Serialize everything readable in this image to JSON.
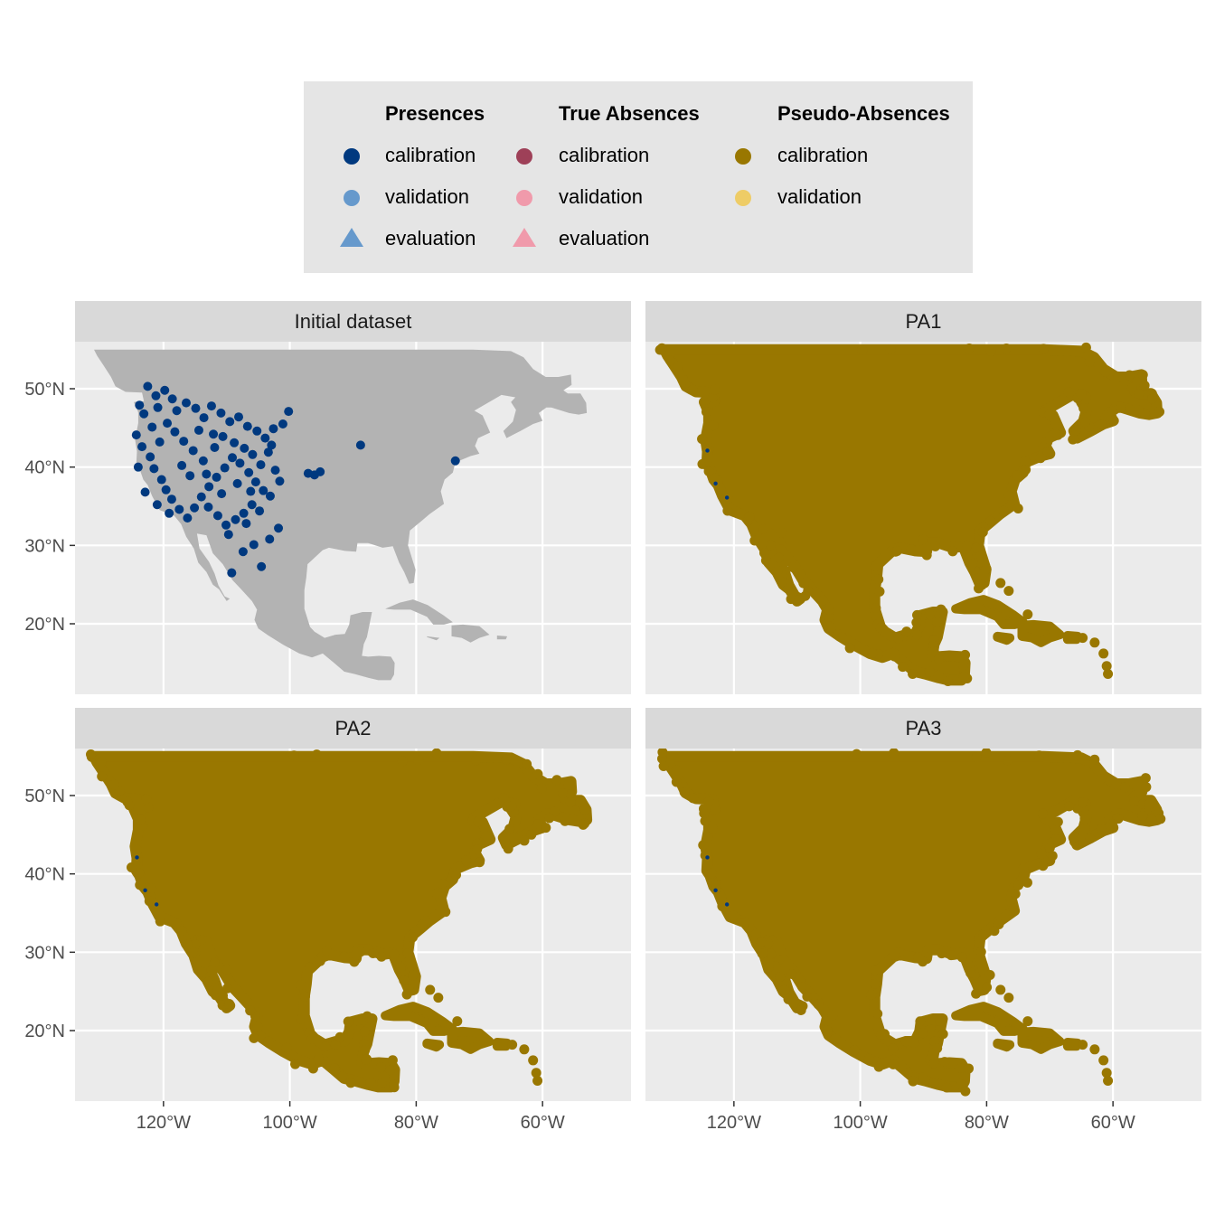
{
  "colors": {
    "presence_calibration": "#00397f",
    "presence_validation": "#6699cc",
    "presence_evaluation": "#6699cc",
    "absence_calibration": "#9e4058",
    "absence_validation": "#f09aab",
    "absence_evaluation": "#f09aab",
    "pseudo_calibration": "#997700",
    "pseudo_validation": "#eecc66",
    "land": "#b3b3b3",
    "panel_background": "#ebebeb",
    "strip_background": "#d9d9d9",
    "legend_background": "#e5e5e5",
    "grid": "#ffffff"
  },
  "legend": {
    "groups": [
      {
        "title": "Presences",
        "items": [
          {
            "label": "calibration",
            "shape": "circle",
            "color": "#00397f"
          },
          {
            "label": "validation",
            "shape": "circle",
            "color": "#6699cc"
          },
          {
            "label": "evaluation",
            "shape": "triangle",
            "color": "#6699cc"
          }
        ]
      },
      {
        "title": "True Absences",
        "items": [
          {
            "label": "calibration",
            "shape": "circle",
            "color": "#9e4058"
          },
          {
            "label": "validation",
            "shape": "circle",
            "color": "#f09aab"
          },
          {
            "label": "evaluation",
            "shape": "triangle",
            "color": "#f09aab"
          }
        ]
      },
      {
        "title": "Pseudo-Absences",
        "items": [
          {
            "label": "calibration",
            "shape": "circle",
            "color": "#997700"
          },
          {
            "label": "validation",
            "shape": "circle",
            "color": "#eecc66"
          }
        ]
      }
    ]
  },
  "chart_data": {
    "type": "scatter",
    "xlim": [
      -134,
      -46
    ],
    "ylim": [
      11,
      56
    ],
    "x_ticks": [
      -120,
      -100,
      -80,
      -60
    ],
    "x_tick_labels": [
      "120°W",
      "100°W",
      "80°W",
      "60°W"
    ],
    "y_ticks": [
      20,
      30,
      40,
      50
    ],
    "y_tick_labels": [
      "20°N",
      "30°N",
      "40°N",
      "50°N"
    ],
    "grid": true,
    "legend_position": "top",
    "panels": [
      {
        "title": "Initial dataset",
        "series": [
          {
            "name": "Presences calibration",
            "color": "#00397f",
            "points": [
              [
                -122.5,
                50.3
              ],
              [
                -121.2,
                49.1
              ],
              [
                -119.8,
                49.8
              ],
              [
                -118.6,
                48.7
              ],
              [
                -120.9,
                47.6
              ],
              [
                -123.1,
                46.8
              ],
              [
                -117.9,
                47.2
              ],
              [
                -116.4,
                48.2
              ],
              [
                -114.9,
                47.5
              ],
              [
                -113.6,
                46.3
              ],
              [
                -112.4,
                47.8
              ],
              [
                -110.9,
                46.9
              ],
              [
                -109.5,
                45.8
              ],
              [
                -108.1,
                46.4
              ],
              [
                -106.7,
                45.2
              ],
              [
                -105.2,
                44.6
              ],
              [
                -103.9,
                43.7
              ],
              [
                -102.6,
                44.9
              ],
              [
                -101.1,
                45.5
              ],
              [
                -124.3,
                44.1
              ],
              [
                -123.4,
                42.6
              ],
              [
                -122.1,
                41.3
              ],
              [
                -121.5,
                39.8
              ],
              [
                -120.3,
                38.4
              ],
              [
                -119.6,
                37.1
              ],
              [
                -118.7,
                35.9
              ],
              [
                -117.5,
                34.6
              ],
              [
                -116.2,
                33.5
              ],
              [
                -115.1,
                34.8
              ],
              [
                -114.0,
                36.2
              ],
              [
                -112.8,
                37.5
              ],
              [
                -111.6,
                38.7
              ],
              [
                -110.3,
                39.9
              ],
              [
                -109.1,
                41.2
              ],
              [
                -107.9,
                40.5
              ],
              [
                -106.5,
                39.3
              ],
              [
                -105.4,
                38.1
              ],
              [
                -104.2,
                37.0
              ],
              [
                -103.1,
                36.3
              ],
              [
                -106.0,
                35.2
              ],
              [
                -107.3,
                34.1
              ],
              [
                -108.6,
                33.3
              ],
              [
                -110.1,
                32.6
              ],
              [
                -111.4,
                33.8
              ],
              [
                -112.9,
                34.9
              ],
              [
                -113.7,
                40.8
              ],
              [
                -115.3,
                42.1
              ],
              [
                -116.8,
                43.3
              ],
              [
                -118.2,
                44.5
              ],
              [
                -119.4,
                45.6
              ],
              [
                -120.6,
                43.2
              ],
              [
                -121.8,
                45.1
              ],
              [
                -117.1,
                40.2
              ],
              [
                -115.8,
                38.9
              ],
              [
                -114.4,
                44.7
              ],
              [
                -111.9,
                42.5
              ],
              [
                -110.6,
                43.9
              ],
              [
                -108.8,
                43.1
              ],
              [
                -107.2,
                42.4
              ],
              [
                -105.9,
                41.6
              ],
              [
                -104.6,
                40.3
              ],
              [
                -103.4,
                41.9
              ],
              [
                -102.3,
                39.6
              ],
              [
                -101.6,
                38.2
              ],
              [
                -104.8,
                34.4
              ],
              [
                -106.9,
                32.8
              ],
              [
                -109.7,
                31.4
              ],
              [
                -103.2,
                30.8
              ],
              [
                -105.7,
                30.1
              ],
              [
                -107.4,
                29.2
              ],
              [
                -101.8,
                32.2
              ],
              [
                -109.2,
                26.5
              ],
              [
                -104.5,
                27.3
              ],
              [
                -97.1,
                39.2
              ],
              [
                -95.2,
                39.4
              ],
              [
                -96.1,
                39.0
              ],
              [
                -100.2,
                47.1
              ],
              [
                -88.8,
                42.8
              ],
              [
                -73.8,
                40.8
              ],
              [
                -123.8,
                47.9
              ],
              [
                -122.9,
                36.8
              ],
              [
                -121.0,
                35.2
              ],
              [
                -119.1,
                34.1
              ],
              [
                -124.0,
                40.0
              ],
              [
                -112.1,
                44.2
              ],
              [
                -113.2,
                39.1
              ],
              [
                -110.8,
                36.6
              ],
              [
                -108.3,
                37.9
              ],
              [
                -106.2,
                36.9
              ],
              [
                -102.9,
                42.8
              ]
            ]
          }
        ]
      },
      {
        "title": "PA1",
        "series": [
          {
            "name": "Pseudo-Absences calibration",
            "color": "#997700"
          },
          {
            "name": "Presences calibration",
            "color": "#00397f"
          }
        ]
      },
      {
        "title": "PA2",
        "series": [
          {
            "name": "Pseudo-Absences calibration",
            "color": "#997700"
          },
          {
            "name": "Presences calibration",
            "color": "#00397f"
          }
        ]
      },
      {
        "title": "PA3",
        "series": [
          {
            "name": "Pseudo-Absences calibration",
            "color": "#997700"
          },
          {
            "name": "Presences calibration",
            "color": "#00397f"
          }
        ]
      }
    ]
  }
}
